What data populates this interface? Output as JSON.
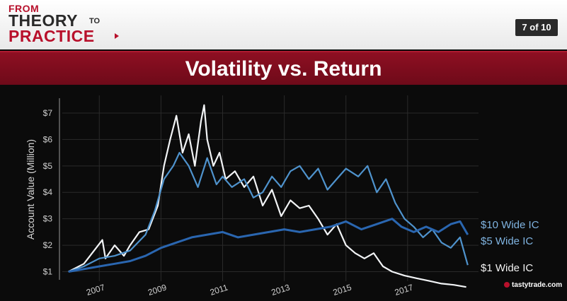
{
  "header": {
    "logo": {
      "from": "FROM",
      "theory": "THEORY",
      "to": "TO",
      "practice": "PRACTICE"
    },
    "page_indicator": "7 of 10"
  },
  "slide": {
    "title": "Volatility vs. Return"
  },
  "brand": "tastytrade.com",
  "colors": {
    "accent": "#8e0f22",
    "series_1": "#f2f4f6",
    "series_5": "#4f93cd",
    "series_10": "#2a66b0"
  },
  "chart_data": {
    "type": "line",
    "title": "Volatility vs. Return",
    "xlabel": "",
    "ylabel": "Account Value (Million)",
    "xlim": [
      2005.8,
      2019.3
    ],
    "ylim": [
      0.8,
      7.4
    ],
    "x_ticks": [
      "2007",
      "2009",
      "2011",
      "2013",
      "2015",
      "2017"
    ],
    "y_ticks": [
      "$1",
      "$2",
      "$3",
      "$4",
      "$5",
      "$6",
      "$7"
    ],
    "grid": true,
    "series": [
      {
        "name": "$1 Wide IC",
        "points": [
          [
            2006.0,
            1.0
          ],
          [
            2006.5,
            1.3
          ],
          [
            2006.9,
            1.9
          ],
          [
            2007.1,
            2.2
          ],
          [
            2007.2,
            1.5
          ],
          [
            2007.5,
            2.0
          ],
          [
            2007.8,
            1.6
          ],
          [
            2008.0,
            2.0
          ],
          [
            2008.3,
            2.5
          ],
          [
            2008.6,
            2.6
          ],
          [
            2008.9,
            3.5
          ],
          [
            2009.1,
            5.0
          ],
          [
            2009.3,
            6.0
          ],
          [
            2009.5,
            6.9
          ],
          [
            2009.7,
            5.5
          ],
          [
            2009.9,
            6.2
          ],
          [
            2010.1,
            5.0
          ],
          [
            2010.3,
            6.7
          ],
          [
            2010.4,
            7.3
          ],
          [
            2010.5,
            6.0
          ],
          [
            2010.7,
            5.0
          ],
          [
            2010.9,
            5.5
          ],
          [
            2011.1,
            4.5
          ],
          [
            2011.4,
            4.8
          ],
          [
            2011.7,
            4.2
          ],
          [
            2012.0,
            4.6
          ],
          [
            2012.3,
            3.5
          ],
          [
            2012.6,
            4.1
          ],
          [
            2012.9,
            3.1
          ],
          [
            2013.2,
            3.7
          ],
          [
            2013.5,
            3.4
          ],
          [
            2013.8,
            3.5
          ],
          [
            2014.1,
            3.0
          ],
          [
            2014.4,
            2.4
          ],
          [
            2014.7,
            2.8
          ],
          [
            2015.0,
            2.0
          ],
          [
            2015.3,
            1.7
          ],
          [
            2015.6,
            1.5
          ],
          [
            2015.9,
            1.7
          ],
          [
            2016.2,
            1.2
          ],
          [
            2016.5,
            1.0
          ],
          [
            2016.9,
            0.85
          ],
          [
            2017.3,
            0.75
          ],
          [
            2017.7,
            0.65
          ],
          [
            2018.1,
            0.55
          ],
          [
            2018.5,
            0.5
          ],
          [
            2018.9,
            0.42
          ]
        ]
      },
      {
        "name": "$5 Wide IC",
        "points": [
          [
            2006.0,
            1.0
          ],
          [
            2006.5,
            1.2
          ],
          [
            2007.0,
            1.5
          ],
          [
            2007.5,
            1.6
          ],
          [
            2008.0,
            1.8
          ],
          [
            2008.5,
            2.4
          ],
          [
            2008.8,
            3.3
          ],
          [
            2009.1,
            4.5
          ],
          [
            2009.4,
            5.0
          ],
          [
            2009.6,
            5.5
          ],
          [
            2009.9,
            5.0
          ],
          [
            2010.2,
            4.2
          ],
          [
            2010.5,
            5.3
          ],
          [
            2010.8,
            4.3
          ],
          [
            2011.0,
            4.6
          ],
          [
            2011.3,
            4.2
          ],
          [
            2011.7,
            4.5
          ],
          [
            2012.0,
            3.8
          ],
          [
            2012.3,
            4.0
          ],
          [
            2012.6,
            4.6
          ],
          [
            2012.9,
            4.2
          ],
          [
            2013.2,
            4.8
          ],
          [
            2013.5,
            5.0
          ],
          [
            2013.8,
            4.5
          ],
          [
            2014.1,
            4.9
          ],
          [
            2014.4,
            4.1
          ],
          [
            2014.7,
            4.5
          ],
          [
            2015.0,
            4.9
          ],
          [
            2015.4,
            4.6
          ],
          [
            2015.7,
            5.0
          ],
          [
            2016.0,
            4.0
          ],
          [
            2016.3,
            4.5
          ],
          [
            2016.6,
            3.6
          ],
          [
            2016.9,
            3.0
          ],
          [
            2017.2,
            2.7
          ],
          [
            2017.5,
            2.3
          ],
          [
            2017.8,
            2.6
          ],
          [
            2018.1,
            2.1
          ],
          [
            2018.4,
            1.9
          ],
          [
            2018.7,
            2.3
          ],
          [
            2018.95,
            1.25
          ]
        ]
      },
      {
        "name": "$10 Wide IC",
        "points": [
          [
            2006.0,
            1.0
          ],
          [
            2006.5,
            1.1
          ],
          [
            2007.0,
            1.2
          ],
          [
            2007.5,
            1.3
          ],
          [
            2008.0,
            1.4
          ],
          [
            2008.5,
            1.6
          ],
          [
            2009.0,
            1.9
          ],
          [
            2009.5,
            2.1
          ],
          [
            2010.0,
            2.3
          ],
          [
            2010.5,
            2.4
          ],
          [
            2011.0,
            2.5
          ],
          [
            2011.5,
            2.3
          ],
          [
            2012.0,
            2.4
          ],
          [
            2012.5,
            2.5
          ],
          [
            2013.0,
            2.6
          ],
          [
            2013.5,
            2.5
          ],
          [
            2014.0,
            2.6
          ],
          [
            2014.5,
            2.7
          ],
          [
            2015.0,
            2.9
          ],
          [
            2015.5,
            2.6
          ],
          [
            2016.0,
            2.8
          ],
          [
            2016.5,
            3.0
          ],
          [
            2016.8,
            2.7
          ],
          [
            2017.2,
            2.5
          ],
          [
            2017.6,
            2.7
          ],
          [
            2018.0,
            2.5
          ],
          [
            2018.4,
            2.8
          ],
          [
            2018.7,
            2.9
          ],
          [
            2018.95,
            2.4
          ]
        ]
      }
    ]
  }
}
